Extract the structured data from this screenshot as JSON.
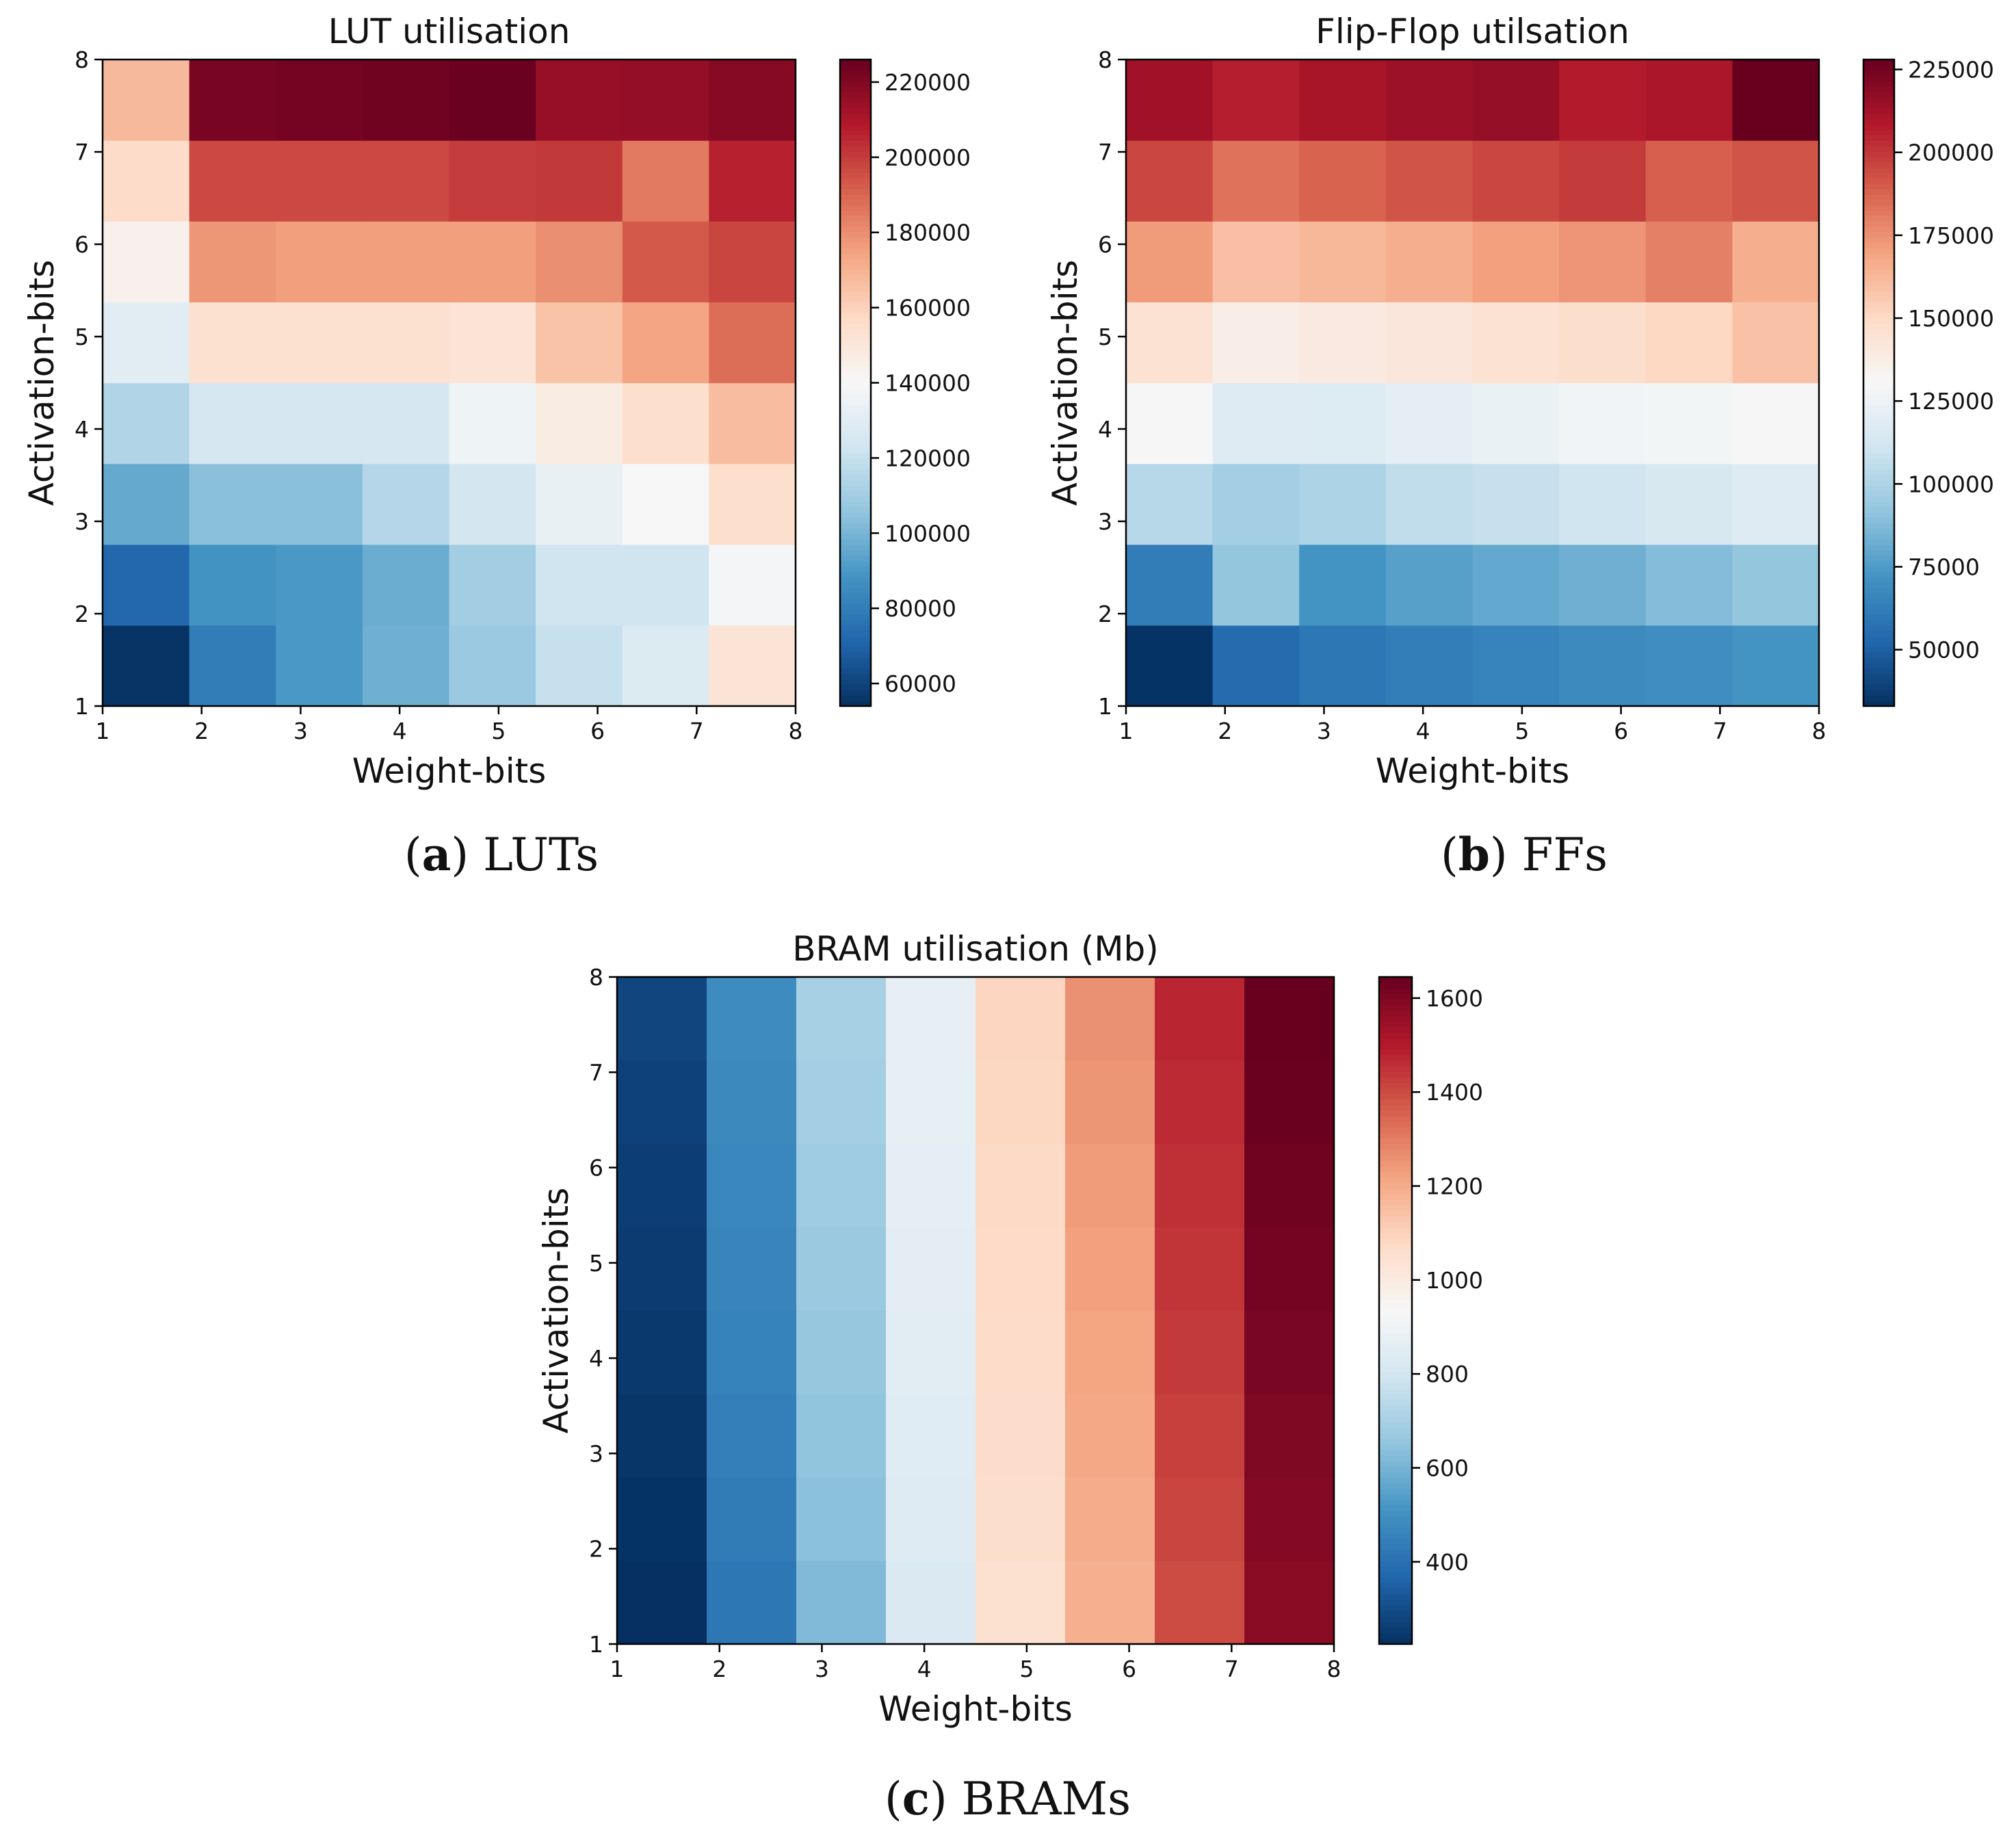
{
  "figure": {
    "captions": [
      {
        "open": "(",
        "letter": "a",
        "close": ")",
        "label": "LUTs"
      },
      {
        "open": "(",
        "letter": "b",
        "close": ")",
        "label": "FFs"
      },
      {
        "open": "(",
        "letter": "c",
        "close": ")",
        "label": "BRAMs"
      }
    ]
  },
  "colors": {
    "colormap": "RdBu_r",
    "stops": [
      "#053061",
      "#2166ac",
      "#4393c3",
      "#92c5de",
      "#d1e5f0",
      "#f7f7f7",
      "#fddbc7",
      "#f4a582",
      "#d6604d",
      "#b2182b",
      "#67001f"
    ]
  },
  "chart_data": [
    {
      "type": "heatmap",
      "title": "LUT utilisation",
      "xlabel": "Weight-bits",
      "ylabel": "Activation-bits",
      "xticks": [
        "1",
        "2",
        "3",
        "4",
        "5",
        "6",
        "7",
        "8"
      ],
      "yticks": [
        "1",
        "2",
        "3",
        "4",
        "5",
        "6",
        "7",
        "8"
      ],
      "xlim": [
        1,
        8
      ],
      "ylim": [
        1,
        8
      ],
      "color_range": [
        54000,
        226000
      ],
      "colorbar_ticks": [
        60000,
        80000,
        100000,
        120000,
        140000,
        160000,
        180000,
        200000,
        220000
      ],
      "colorbar_labels": [
        "60000",
        "80000",
        "100000",
        "120000",
        "140000",
        "160000",
        "180000",
        "200000",
        "220000"
      ],
      "rows_activation_bits": [
        1,
        2,
        3,
        4,
        5,
        6,
        7,
        8
      ],
      "columns_weight_bits": [
        1,
        2,
        3,
        4,
        5,
        6,
        7,
        8
      ],
      "values": [
        [
          55000,
          80000,
          90000,
          98000,
          108000,
          120000,
          128000,
          152000
        ],
        [
          72000,
          88000,
          90000,
          97000,
          110000,
          123000,
          123000,
          138000
        ],
        [
          96000,
          104000,
          104000,
          115000,
          124000,
          133000,
          140000,
          155000
        ],
        [
          114000,
          125000,
          125000,
          125000,
          136000,
          147000,
          155000,
          167000
        ],
        [
          130000,
          154000,
          154000,
          154000,
          152000,
          165000,
          174000,
          188000
        ],
        [
          144000,
          178000,
          176000,
          176000,
          176000,
          180000,
          193000,
          198000
        ],
        [
          156000,
          197000,
          197000,
          197000,
          200000,
          201000,
          185000,
          207000
        ],
        [
          168000,
          222000,
          223000,
          224000,
          225000,
          215000,
          216000,
          219000
        ]
      ]
    },
    {
      "type": "heatmap",
      "title": "Flip-Flop utilsation",
      "xlabel": "Weight-bits",
      "ylabel": "Activation-bits",
      "xticks": [
        "1",
        "2",
        "3",
        "4",
        "5",
        "6",
        "7",
        "8"
      ],
      "yticks": [
        "1",
        "2",
        "3",
        "4",
        "5",
        "6",
        "7",
        "8"
      ],
      "xlim": [
        1,
        8
      ],
      "ylim": [
        1,
        8
      ],
      "color_range": [
        33000,
        228000
      ],
      "colorbar_ticks": [
        50000,
        75000,
        100000,
        125000,
        150000,
        175000,
        200000,
        225000
      ],
      "colorbar_labels": [
        "50000",
        "75000",
        "100000",
        "125000",
        "150000",
        "175000",
        "200000",
        "225000"
      ],
      "rows_activation_bits": [
        1,
        2,
        3,
        4,
        5,
        6,
        7,
        8
      ],
      "columns_weight_bits": [
        1,
        2,
        3,
        4,
        5,
        6,
        7,
        8
      ],
      "values": [
        [
          34000,
          55000,
          60000,
          63000,
          65000,
          68000,
          70000,
          72000
        ],
        [
          62000,
          92000,
          72000,
          77000,
          80000,
          83000,
          88000,
          92000
        ],
        [
          103000,
          97000,
          100000,
          106000,
          108000,
          111000,
          114000,
          118000
        ],
        [
          131000,
          118000,
          117000,
          121000,
          124000,
          127000,
          128000,
          131000
        ],
        [
          145000,
          137000,
          140000,
          142000,
          145000,
          148000,
          151000,
          159000
        ],
        [
          172000,
          160000,
          163000,
          166000,
          171000,
          174000,
          180000,
          166000
        ],
        [
          196000,
          184000,
          188000,
          192000,
          196000,
          199000,
          189000,
          192000
        ],
        [
          213000,
          207000,
          211000,
          214000,
          216000,
          208000,
          210000,
          228000
        ]
      ]
    },
    {
      "type": "heatmap",
      "title": "BRAM utilisation (Mb)",
      "xlabel": "Weight-bits",
      "ylabel": "Activation-bits",
      "xticks": [
        "1",
        "2",
        "3",
        "4",
        "5",
        "6",
        "7",
        "8"
      ],
      "yticks": [
        "1",
        "2",
        "3",
        "4",
        "5",
        "6",
        "7",
        "8"
      ],
      "xlim": [
        1,
        8
      ],
      "ylim": [
        1,
        8
      ],
      "color_range": [
        225,
        1645
      ],
      "colorbar_ticks": [
        400,
        600,
        800,
        1000,
        1200,
        1400,
        1600
      ],
      "colorbar_labels": [
        "400",
        "600",
        "800",
        "1000",
        "1200",
        "1400",
        "1600"
      ],
      "rows_activation_bits": [
        1,
        2,
        3,
        4,
        5,
        6,
        7,
        8
      ],
      "columns_weight_bits": [
        1,
        2,
        3,
        4,
        5,
        6,
        7,
        8
      ],
      "values": [
        [
          225,
          420,
          620,
          830,
          1050,
          1190,
          1400,
          1580
        ],
        [
          232,
          435,
          640,
          840,
          1060,
          1200,
          1415,
          1590
        ],
        [
          240,
          445,
          650,
          850,
          1065,
          1210,
          1425,
          1600
        ],
        [
          248,
          455,
          660,
          855,
          1070,
          1220,
          1435,
          1610
        ],
        [
          255,
          462,
          670,
          860,
          1075,
          1230,
          1445,
          1620
        ],
        [
          262,
          470,
          680,
          865,
          1080,
          1240,
          1455,
          1630
        ],
        [
          270,
          478,
          690,
          870,
          1085,
          1250,
          1465,
          1640
        ],
        [
          280,
          485,
          700,
          875,
          1090,
          1260,
          1475,
          1645
        ]
      ]
    }
  ]
}
